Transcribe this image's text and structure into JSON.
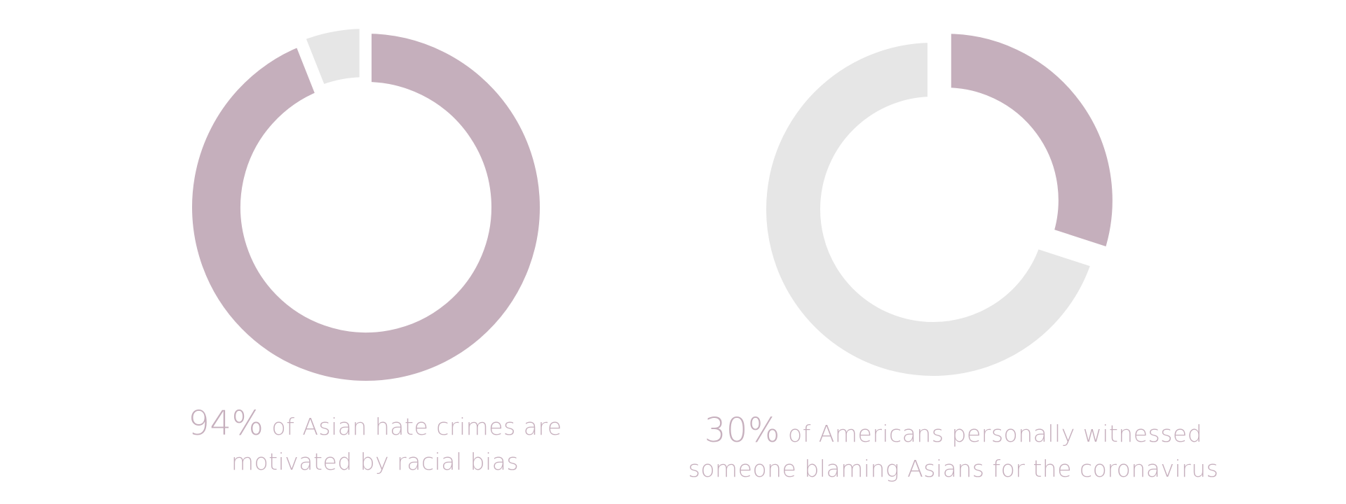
{
  "colors": {
    "accent": "#c5afbc",
    "rest": "#e6e6e6",
    "text": "#c6afbd"
  },
  "chart_data": [
    {
      "type": "pie",
      "variant": "donut",
      "categories": [
        "motivated by racial bias",
        "other"
      ],
      "values": [
        94,
        6
      ],
      "colors": [
        "#c5afbc",
        "#e6e6e6"
      ],
      "caption": {
        "value": "94%",
        "line1": "of Asian hate crimes are",
        "line2": "motivated by racial bias"
      }
    },
    {
      "type": "pie",
      "variant": "donut",
      "categories": [
        "personally witnessed",
        "other"
      ],
      "values": [
        30,
        70
      ],
      "colors": [
        "#c5afbc",
        "#e6e6e6"
      ],
      "caption": {
        "value": "30%",
        "line1": "of Americans personally witnessed",
        "line2": "someone blaming Asians for the coronavirus"
      }
    }
  ]
}
